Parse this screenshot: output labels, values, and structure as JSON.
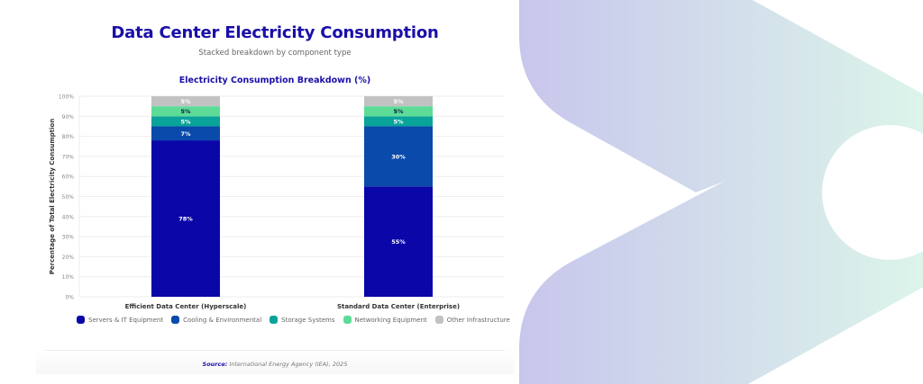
{
  "page": {
    "title": "Data Center Electricity Consumption",
    "subtitle": "Stacked breakdown by component type",
    "source_label": "Source:",
    "source_text": "International Energy Agency (IEA), 2025"
  },
  "theme": {
    "title_color": "#1a0fa8",
    "decoration_gradient": [
      "#c8c6ec",
      "#dcf5ea"
    ]
  },
  "chart_data": {
    "type": "bar",
    "stacked": true,
    "title": "Electricity Consumption Breakdown (%)",
    "xlabel": "",
    "ylabel": "Percentage of Total Electricity Consumption",
    "ylim": [
      0,
      100
    ],
    "yticks": [
      0,
      10,
      20,
      30,
      40,
      50,
      60,
      70,
      80,
      90,
      100
    ],
    "ytick_format": "{v}%",
    "grid": true,
    "legend_position": "bottom",
    "categories": [
      "Efficient Data Center (Hyperscale)",
      "Standard Data Center (Enterprise)"
    ],
    "series": [
      {
        "name": "Servers & IT Equipment",
        "color": "#0a06a8",
        "label_color": "#ffffff",
        "values": [
          78,
          55
        ]
      },
      {
        "name": "Cooling & Environmental",
        "color": "#0a4aaa",
        "label_color": "#ffffff",
        "values": [
          7,
          30
        ]
      },
      {
        "name": "Storage Systems",
        "color": "#0aa39a",
        "label_color": "#ffffff",
        "values": [
          5,
          5
        ]
      },
      {
        "name": "Networking Equipment",
        "color": "#5ddc98",
        "label_color": "#0b1a3a",
        "values": [
          5,
          5
        ]
      },
      {
        "name": "Other Infrastructure",
        "color": "#c2c2c2",
        "label_color": "#ffffff",
        "values": [
          5,
          5
        ]
      }
    ],
    "data_label_format": "{v}%"
  }
}
